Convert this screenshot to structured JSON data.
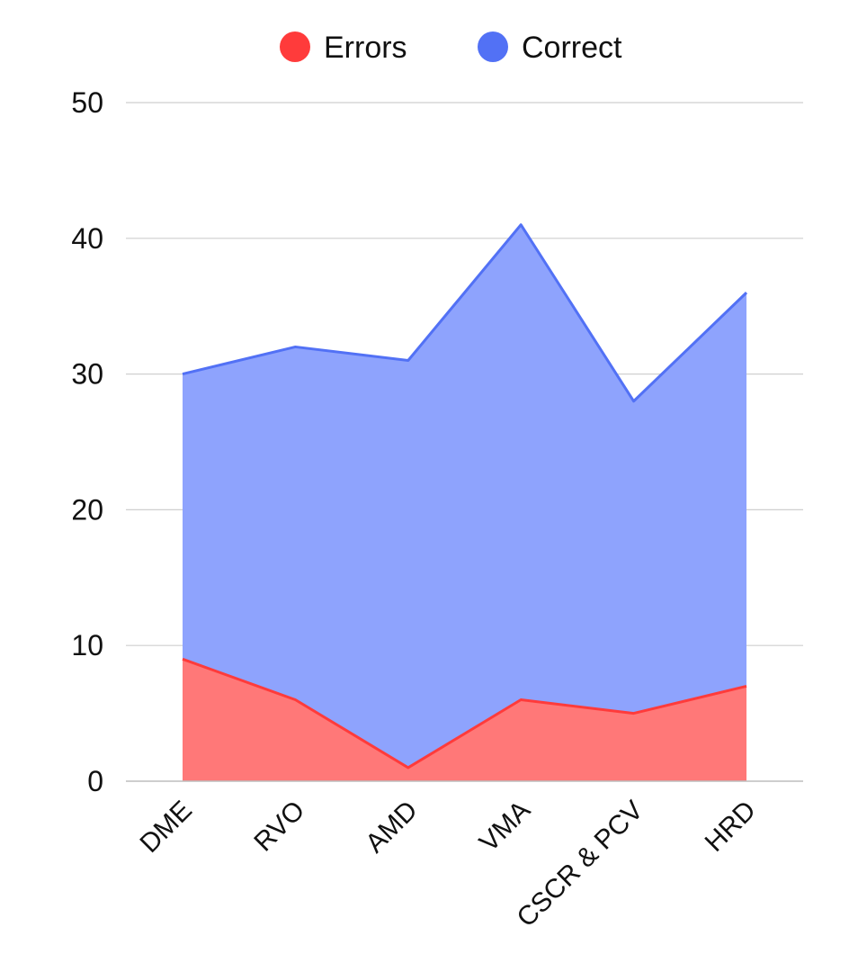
{
  "chart_data": {
    "type": "area",
    "stacked": true,
    "categories": [
      "DME",
      "RVO",
      "AMD",
      "VMA",
      "CSCR & PCV",
      "HRD"
    ],
    "series": [
      {
        "name": "Errors",
        "values": [
          9,
          6,
          1,
          6,
          5,
          7
        ],
        "color": "#ff3b3b",
        "fill": "#ff7878"
      },
      {
        "name": "Correct",
        "values": [
          21,
          26,
          30,
          35,
          23,
          29
        ],
        "color": "#5271f5",
        "fill": "#8ea3fd"
      }
    ],
    "ylim": [
      0,
      50
    ],
    "yticks": [
      0,
      10,
      20,
      30,
      40,
      50
    ],
    "grid": true,
    "legend": "top-center",
    "xlabel": "",
    "ylabel": "",
    "title": ""
  }
}
